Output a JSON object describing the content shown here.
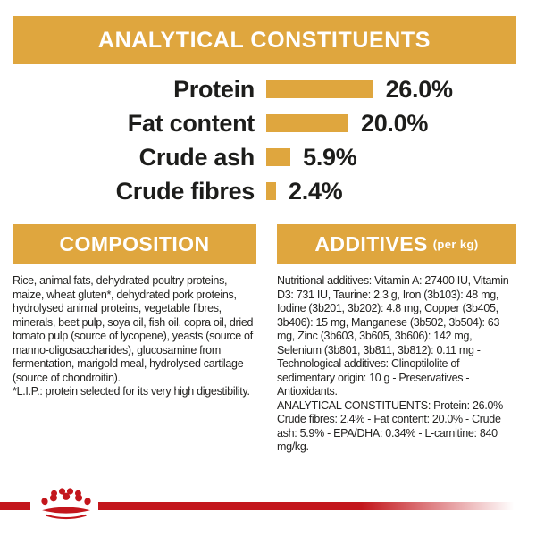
{
  "colors": {
    "gold": "#DFA63E",
    "red": "#C3161C",
    "text": "#1d1d1b"
  },
  "header": {
    "title": "ANALYTICAL CONSTITUENTS"
  },
  "chart_data": {
    "type": "bar",
    "orientation": "horizontal",
    "title": "ANALYTICAL CONSTITUENTS",
    "categories": [
      "Protein",
      "Fat content",
      "Crude ash",
      "Crude fibres"
    ],
    "values": [
      26.0,
      20.0,
      5.9,
      2.4
    ],
    "value_labels": [
      "26.0%",
      "20.0%",
      "5.9%",
      "2.4%"
    ],
    "unit": "%",
    "xlim": [
      0,
      28
    ],
    "bar_color": "#DFA63E",
    "grid": false,
    "legend": false
  },
  "sections": {
    "composition": {
      "title": "COMPOSITION",
      "body": "Rice, animal fats, dehydrated poultry proteins, maize, wheat gluten*, dehydrated pork proteins, hydrolysed animal proteins, vegetable fibres, minerals, beet pulp, soya oil, fish oil, copra oil, dried tomato pulp (source of lycopene), yeasts (source of manno-oligosaccharides), glucosamine from fermentation, marigold meal, hydrolysed cartilage (source of chondroitin).",
      "footnote": "*L.I.P.: protein selected for its very high digestibility."
    },
    "additives": {
      "title": "ADDITIVES",
      "title_suffix": "(per kg)",
      "body": "Nutritional additives: Vitamin A: 27400 IU, Vitamin D3: 731 IU, Taurine: 2.3 g, Iron (3b103): 48 mg, Iodine (3b201, 3b202): 4.8 mg, Copper (3b405, 3b406): 15 mg, Manganese (3b502, 3b504): 63 mg, Zinc (3b603, 3b605, 3b606): 142 mg, Selenium (3b801, 3b811, 3b812): 0.11 mg - Technological additives: Clinoptilolite of sedimentary origin: 10 g - Preservatives - Antioxidants.",
      "analytical": "ANALYTICAL CONSTITUENTS: Protein: 26.0% - Crude fibres: 2.4% - Fat content: 20.0% - Crude ash: 5.9% - EPA/DHA: 0.34% - L-carnitine: 840 mg/kg."
    }
  },
  "footer": {
    "brand_icon": "royal-canin-crown-icon"
  }
}
